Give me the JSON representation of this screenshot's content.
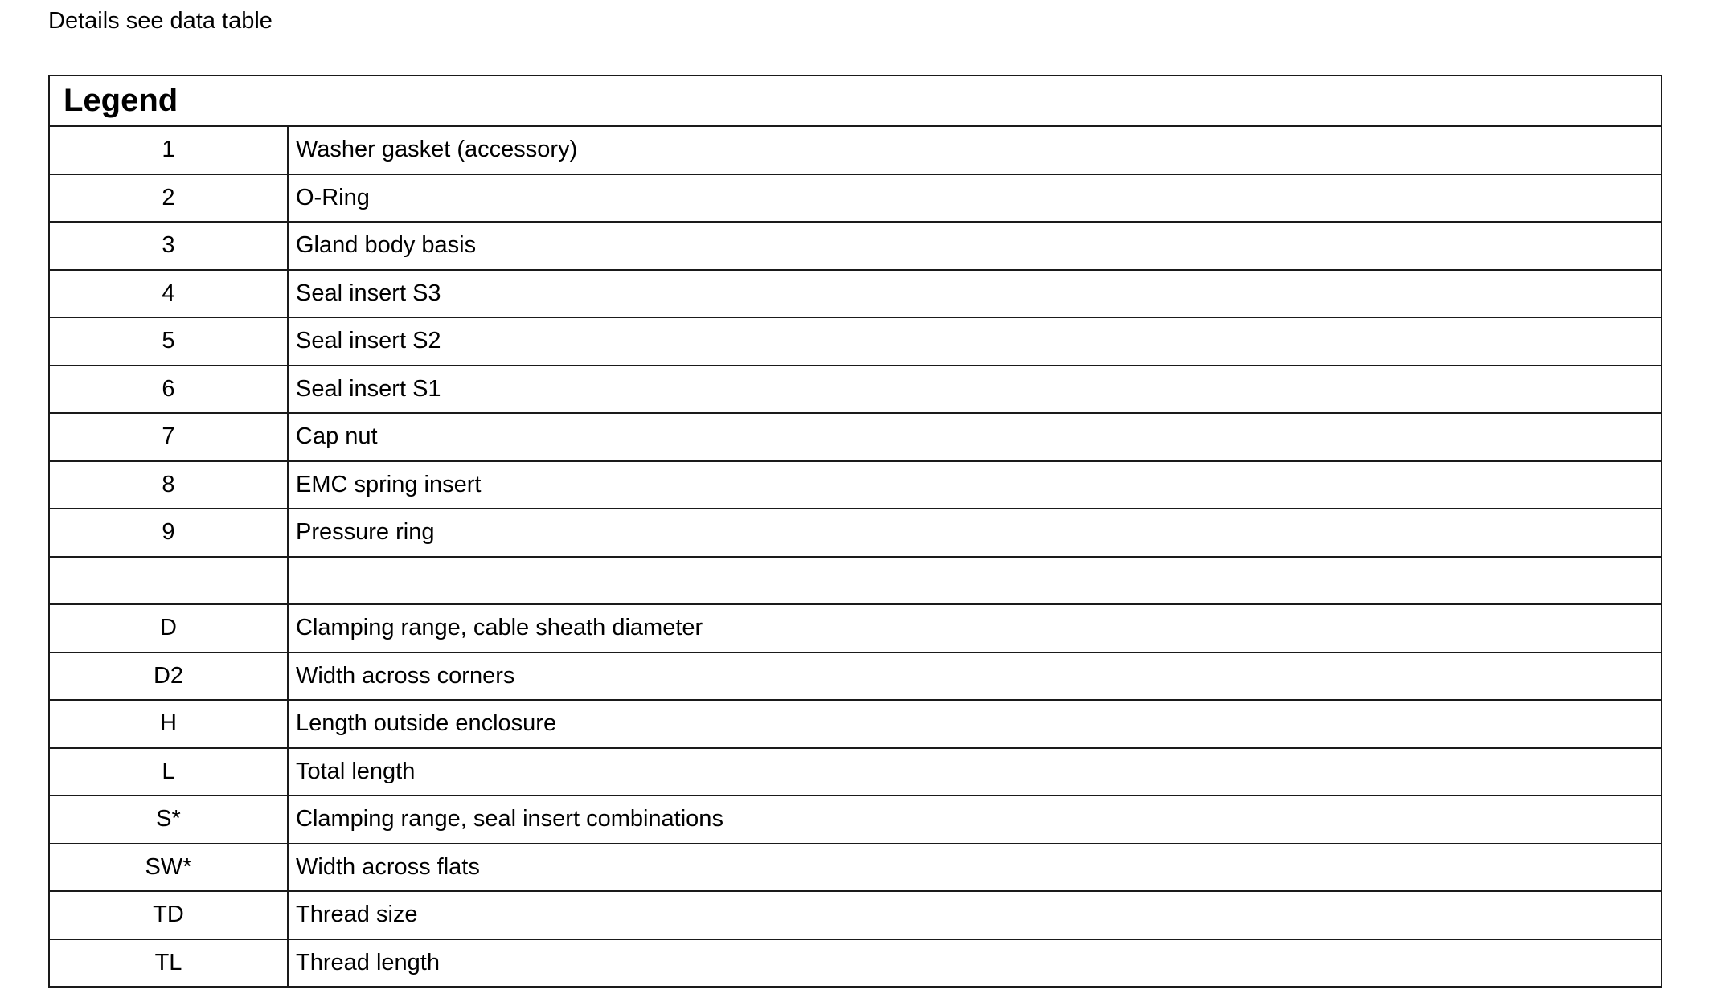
{
  "intro": "Details see data table",
  "legend": {
    "title": "Legend",
    "rows": [
      {
        "key": "1",
        "value": "Washer gasket (accessory)"
      },
      {
        "key": "2",
        "value": "O-Ring"
      },
      {
        "key": "3",
        "value": "Gland body basis"
      },
      {
        "key": "4",
        "value": "Seal insert S3"
      },
      {
        "key": "5",
        "value": "Seal insert S2"
      },
      {
        "key": "6",
        "value": "Seal insert S1"
      },
      {
        "key": "7",
        "value": "Cap nut"
      },
      {
        "key": "8",
        "value": "EMC spring insert"
      },
      {
        "key": "9",
        "value": "Pressure ring"
      },
      {
        "key": "",
        "value": ""
      },
      {
        "key": "D",
        "value": "Clamping range, cable sheath diameter"
      },
      {
        "key": "D2",
        "value": "Width across corners"
      },
      {
        "key": "H",
        "value": "Length outside enclosure"
      },
      {
        "key": "L",
        "value": "Total length"
      },
      {
        "key": "S*",
        "value": "Clamping range, seal insert combinations"
      },
      {
        "key": "SW*",
        "value": "Width across flats"
      },
      {
        "key": "TD",
        "value": "Thread size"
      },
      {
        "key": "TL",
        "value": "Thread length"
      }
    ]
  }
}
